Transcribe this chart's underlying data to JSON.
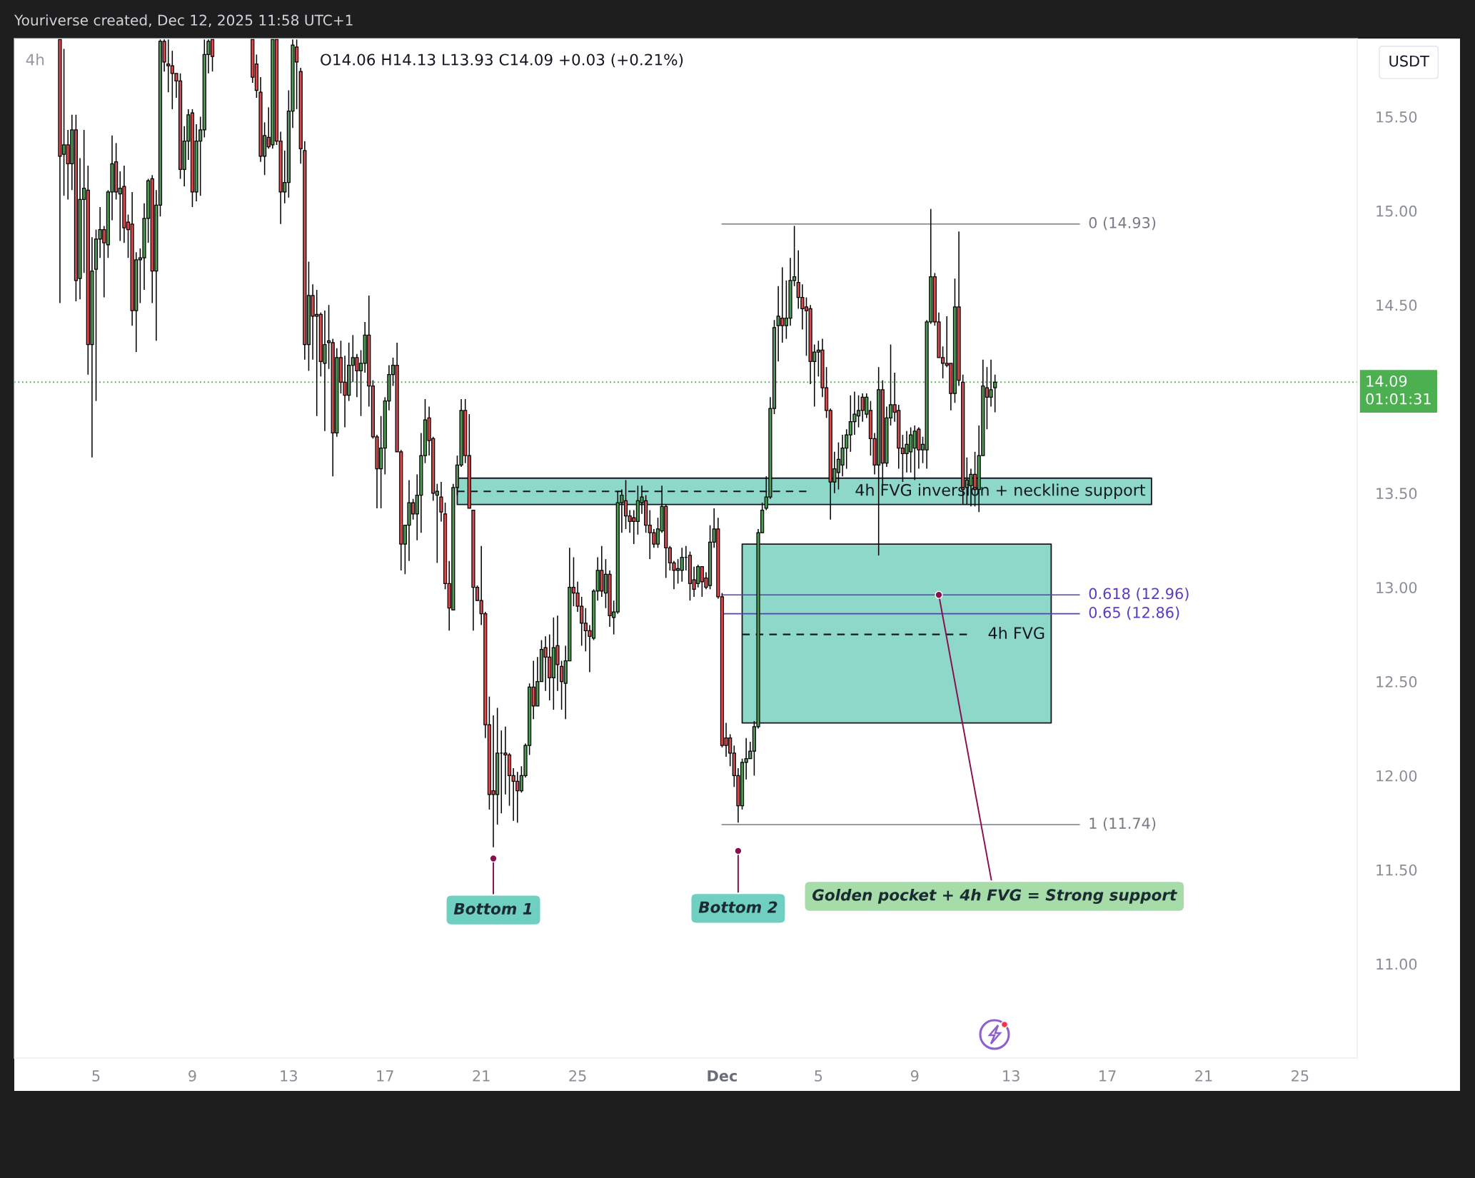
{
  "chart_data": {
    "type": "candlestick",
    "title": "Youriverse created, Dec 12, 2025 11:58 UTC+1",
    "ylabel": "USDT",
    "x": [
      "2025-11-03T12:00",
      "2025-11-03T16:00",
      "2025-11-03T20:00",
      "2025-11-04T00:00",
      "2025-11-04T04:00",
      "2025-11-04T08:00",
      "2025-11-04T12:00",
      "2025-11-04T16:00",
      "2025-11-04T20:00",
      "2025-11-05T00:00",
      "2025-11-05T04:00",
      "2025-11-05T08:00",
      "2025-11-05T12:00",
      "2025-11-05T16:00",
      "2025-11-05T20:00",
      "2025-11-06T00:00",
      "2025-11-06T04:00",
      "2025-11-06T08:00",
      "2025-11-06T12:00",
      "2025-11-06T16:00",
      "2025-11-06T20:00",
      "2025-11-07T00:00",
      "2025-11-07T04:00",
      "2025-11-07T08:00",
      "2025-11-07T12:00",
      "2025-11-07T16:00",
      "2025-11-07T20:00",
      "2025-11-08T00:00",
      "2025-11-08T04:00",
      "2025-11-08T08:00",
      "2025-11-08T12:00",
      "2025-11-08T16:00",
      "2025-11-08T20:00",
      "2025-11-09T00:00",
      "2025-11-09T04:00",
      "2025-11-09T08:00",
      "2025-11-09T12:00",
      "2025-11-09T16:00",
      "2025-11-09T20:00",
      "2025-11-11T12:00",
      "2025-11-11T16:00",
      "2025-11-11T20:00",
      "2025-11-12T00:00",
      "2025-11-12T04:00",
      "2025-11-12T08:00",
      "2025-11-12T12:00",
      "2025-11-12T16:00",
      "2025-11-12T20:00",
      "2025-11-13T00:00",
      "2025-11-13T04:00",
      "2025-11-13T08:00",
      "2025-11-13T12:00",
      "2025-11-13T16:00",
      "2025-11-13T20:00",
      "2025-11-14T00:00",
      "2025-11-14T04:00",
      "2025-11-14T08:00",
      "2025-11-14T12:00",
      "2025-11-14T16:00",
      "2025-11-14T20:00",
      "2025-11-15T00:00",
      "2025-11-15T04:00",
      "2025-11-15T08:00",
      "2025-11-15T12:00",
      "2025-11-15T16:00",
      "2025-11-15T20:00",
      "2025-11-16T00:00",
      "2025-11-16T04:00",
      "2025-11-16T08:00",
      "2025-11-16T12:00",
      "2025-11-16T16:00",
      "2025-11-16T20:00",
      "2025-11-17T00:00",
      "2025-11-17T04:00",
      "2025-11-17T08:00",
      "2025-11-17T12:00",
      "2025-11-17T16:00",
      "2025-11-17T20:00",
      "2025-11-18T00:00",
      "2025-11-18T04:00",
      "2025-11-18T08:00",
      "2025-11-18T12:00",
      "2025-11-18T16:00",
      "2025-11-18T20:00",
      "2025-11-19T00:00",
      "2025-11-19T04:00",
      "2025-11-19T08:00",
      "2025-11-19T12:00",
      "2025-11-19T16:00",
      "2025-11-19T20:00",
      "2025-11-20T00:00",
      "2025-11-20T04:00",
      "2025-11-20T08:00",
      "2025-11-20T12:00",
      "2025-11-20T16:00",
      "2025-11-20T20:00",
      "2025-11-21T00:00",
      "2025-11-21T04:00",
      "2025-11-21T08:00",
      "2025-11-21T12:00",
      "2025-11-21T16:00",
      "2025-11-21T20:00",
      "2025-11-22T00:00",
      "2025-11-22T04:00",
      "2025-11-22T08:00",
      "2025-11-22T12:00",
      "2025-11-22T16:00",
      "2025-11-22T20:00",
      "2025-11-23T00:00",
      "2025-11-23T04:00",
      "2025-11-23T08:00",
      "2025-11-23T12:00",
      "2025-11-23T16:00",
      "2025-11-23T20:00",
      "2025-11-24T00:00",
      "2025-11-24T04:00",
      "2025-11-24T08:00",
      "2025-11-24T12:00",
      "2025-11-24T16:00",
      "2025-11-24T20:00",
      "2025-11-25T00:00",
      "2025-11-25T04:00",
      "2025-11-25T08:00",
      "2025-11-25T12:00",
      "2025-11-25T16:00",
      "2025-11-25T20:00",
      "2025-11-26T00:00",
      "2025-11-26T04:00",
      "2025-11-26T08:00",
      "2025-11-26T12:00",
      "2025-11-26T16:00",
      "2025-11-26T20:00",
      "2025-11-27T00:00",
      "2025-11-27T04:00",
      "2025-11-27T08:00",
      "2025-11-27T12:00",
      "2025-11-27T16:00",
      "2025-11-27T20:00",
      "2025-11-28T00:00",
      "2025-11-28T04:00",
      "2025-11-28T08:00",
      "2025-11-28T12:00",
      "2025-11-28T16:00",
      "2025-11-28T20:00",
      "2025-11-29T00:00",
      "2025-11-29T04:00",
      "2025-11-29T08:00",
      "2025-11-29T12:00",
      "2025-11-29T16:00",
      "2025-11-29T20:00",
      "2025-11-30T00:00",
      "2025-11-30T04:00",
      "2025-11-30T08:00",
      "2025-11-30T12:00",
      "2025-11-30T16:00",
      "2025-11-30T20:00",
      "2025-12-01T00:00",
      "2025-12-01T04:00",
      "2025-12-01T08:00",
      "2025-12-01T12:00",
      "2025-12-01T16:00",
      "2025-12-01T20:00",
      "2025-12-02T00:00",
      "2025-12-02T04:00",
      "2025-12-02T08:00",
      "2025-12-02T12:00",
      "2025-12-02T16:00",
      "2025-12-02T20:00",
      "2025-12-03T00:00",
      "2025-12-03T04:00",
      "2025-12-03T08:00",
      "2025-12-03T12:00",
      "2025-12-03T16:00",
      "2025-12-03T20:00",
      "2025-12-04T00:00",
      "2025-12-04T04:00",
      "2025-12-04T08:00",
      "2025-12-04T12:00",
      "2025-12-04T16:00",
      "2025-12-04T20:00",
      "2025-12-05T00:00",
      "2025-12-05T04:00",
      "2025-12-05T08:00",
      "2025-12-05T12:00",
      "2025-12-05T16:00",
      "2025-12-05T20:00",
      "2025-12-06T00:00",
      "2025-12-06T04:00",
      "2025-12-06T08:00",
      "2025-12-06T12:00",
      "2025-12-06T16:00",
      "2025-12-06T20:00",
      "2025-12-07T00:00",
      "2025-12-07T04:00",
      "2025-12-07T08:00",
      "2025-12-07T12:00",
      "2025-12-07T16:00",
      "2025-12-07T20:00",
      "2025-12-08T00:00",
      "2025-12-08T04:00",
      "2025-12-08T08:00",
      "2025-12-08T12:00",
      "2025-12-08T16:00",
      "2025-12-08T20:00",
      "2025-12-09T00:00",
      "2025-12-09T04:00",
      "2025-12-09T08:00",
      "2025-12-09T12:00",
      "2025-12-09T16:00",
      "2025-12-09T20:00",
      "2025-12-10T00:00",
      "2025-12-10T04:00",
      "2025-12-10T08:00",
      "2025-12-10T12:00",
      "2025-12-10T16:00",
      "2025-12-10T20:00",
      "2025-12-11T00:00",
      "2025-12-11T04:00",
      "2025-12-11T08:00",
      "2025-12-11T12:00",
      "2025-12-11T16:00",
      "2025-12-11T20:00",
      "2025-12-12T00:00",
      "2025-12-12T04:00",
      "2025-12-12T08:00"
    ],
    "ohlc": [
      [
        15.91,
        15.91,
        14.51,
        15.29
      ],
      [
        15.3,
        15.86,
        15.08,
        15.35
      ],
      [
        15.35,
        15.43,
        15.06,
        15.25
      ],
      [
        15.25,
        15.51,
        15.11,
        15.43
      ],
      [
        15.43,
        15.51,
        14.52,
        14.63
      ],
      [
        14.64,
        15.28,
        14.53,
        15.06
      ],
      [
        15.06,
        15.43,
        14.67,
        15.12
      ],
      [
        15.11,
        15.24,
        14.13,
        14.29
      ],
      [
        14.29,
        14.86,
        13.69,
        14.68
      ],
      [
        14.69,
        14.9,
        13.99,
        14.85
      ],
      [
        14.85,
        15.02,
        14.75,
        14.9
      ],
      [
        14.9,
        14.92,
        14.54,
        14.83
      ],
      [
        14.82,
        15.11,
        14.75,
        15.1
      ],
      [
        15.1,
        15.4,
        14.95,
        15.25
      ],
      [
        15.26,
        15.36,
        15.06,
        15.1
      ],
      [
        15.09,
        15.21,
        14.84,
        15.12
      ],
      [
        15.13,
        15.24,
        14.83,
        14.91
      ],
      [
        14.94,
        14.98,
        14.75,
        14.9
      ],
      [
        14.93,
        15.1,
        14.39,
        14.47
      ],
      [
        14.47,
        14.78,
        14.25,
        14.74
      ],
      [
        14.74,
        14.8,
        14.51,
        14.75
      ],
      [
        14.75,
        15.04,
        14.58,
        14.96
      ],
      [
        14.96,
        15.17,
        14.83,
        15.16
      ],
      [
        15.17,
        15.19,
        14.51,
        14.68
      ],
      [
        14.68,
        15.11,
        14.31,
        15.03
      ],
      [
        15.03,
        15.91,
        14.97,
        15.9
      ],
      [
        15.9,
        15.91,
        15.74,
        15.79
      ],
      [
        15.78,
        15.91,
        15.63,
        15.77
      ],
      [
        15.77,
        15.85,
        15.54,
        15.73
      ],
      [
        15.73,
        15.73,
        15.6,
        15.69
      ],
      [
        15.69,
        15.73,
        15.17,
        15.22
      ],
      [
        15.22,
        15.45,
        15.13,
        15.37
      ],
      [
        15.37,
        15.54,
        15.27,
        15.51
      ],
      [
        15.52,
        15.54,
        15.02,
        15.1
      ],
      [
        15.1,
        15.46,
        15.05,
        15.37
      ],
      [
        15.37,
        15.5,
        15.08,
        15.43
      ],
      [
        15.43,
        15.91,
        15.39,
        15.83
      ],
      [
        15.83,
        15.91,
        15.73,
        15.9
      ],
      [
        15.91,
        15.91,
        15.74,
        15.82
      ],
      [
        15.91,
        15.91,
        15.68,
        15.71
      ],
      [
        15.78,
        15.83,
        15.6,
        15.64
      ],
      [
        15.63,
        15.71,
        15.26,
        15.29
      ],
      [
        15.29,
        15.47,
        15.19,
        15.4
      ],
      [
        15.39,
        15.55,
        15.33,
        15.34
      ],
      [
        15.35,
        15.91,
        15.33,
        15.91
      ],
      [
        15.91,
        15.91,
        15.35,
        15.37
      ],
      [
        15.37,
        15.42,
        14.93,
        15.1
      ],
      [
        15.1,
        15.32,
        15.04,
        15.15
      ],
      [
        15.15,
        15.64,
        15.07,
        15.53
      ],
      [
        15.53,
        15.91,
        15.44,
        15.88
      ],
      [
        15.87,
        15.91,
        15.54,
        15.79
      ],
      [
        15.74,
        15.76,
        15.25,
        15.33
      ],
      [
        15.32,
        15.37,
        14.21,
        14.29
      ],
      [
        14.29,
        14.73,
        14.15,
        14.55
      ],
      [
        14.55,
        14.61,
        14.21,
        14.44
      ],
      [
        14.45,
        14.58,
        13.91,
        14.44
      ],
      [
        14.45,
        14.46,
        14.12,
        14.2
      ],
      [
        14.19,
        14.47,
        13.83,
        14.29
      ],
      [
        14.3,
        14.5,
        14.16,
        14.31
      ],
      [
        14.3,
        14.32,
        13.59,
        13.82
      ],
      [
        13.82,
        14.27,
        13.8,
        14.22
      ],
      [
        14.22,
        14.31,
        14.03,
        14.09
      ],
      [
        14.09,
        14.23,
        13.85,
        14.02
      ],
      [
        14.02,
        14.3,
        13.99,
        14.18
      ],
      [
        14.18,
        14.34,
        14.09,
        14.22
      ],
      [
        14.22,
        14.24,
        14.01,
        14.15
      ],
      [
        14.15,
        14.26,
        13.91,
        14.19
      ],
      [
        14.19,
        14.41,
        14.14,
        14.34
      ],
      [
        14.34,
        14.55,
        13.96,
        14.07
      ],
      [
        14.07,
        14.1,
        13.79,
        13.8
      ],
      [
        13.8,
        13.81,
        13.42,
        13.63
      ],
      [
        13.63,
        13.91,
        13.42,
        13.74
      ],
      [
        13.74,
        14.01,
        13.6,
        13.99
      ],
      [
        13.99,
        14.18,
        13.94,
        14.13
      ],
      [
        14.13,
        14.22,
        14.07,
        14.18
      ],
      [
        14.18,
        14.3,
        13.72,
        13.72
      ],
      [
        13.72,
        13.73,
        13.09,
        13.23
      ],
      [
        13.23,
        13.33,
        13.07,
        13.33
      ],
      [
        13.33,
        13.57,
        13.14,
        13.45
      ],
      [
        13.45,
        13.47,
        13.36,
        13.39
      ],
      [
        13.39,
        13.6,
        13.25,
        13.49
      ],
      [
        13.49,
        13.82,
        13.29,
        13.7
      ],
      [
        13.7,
        14.0,
        13.66,
        13.89
      ],
      [
        13.9,
        13.96,
        13.7,
        13.78
      ],
      [
        13.79,
        13.8,
        13.46,
        13.5
      ],
      [
        13.49,
        13.55,
        13.13,
        13.51
      ],
      [
        13.48,
        13.56,
        13.35,
        13.4
      ],
      [
        13.39,
        13.45,
        12.99,
        13.02
      ],
      [
        13.02,
        13.14,
        12.77,
        12.89
      ],
      [
        12.88,
        13.55,
        12.88,
        13.53
      ],
      [
        13.53,
        13.7,
        13.49,
        13.65
      ],
      [
        13.65,
        14.0,
        13.64,
        13.94
      ],
      [
        13.94,
        14.0,
        13.66,
        13.7
      ],
      [
        13.7,
        13.92,
        13.42,
        13.42
      ],
      [
        13.41,
        13.41,
        12.77,
        13.0
      ],
      [
        13.0,
        13.01,
        12.93,
        12.93
      ],
      [
        12.93,
        13.22,
        12.8,
        12.86
      ],
      [
        12.86,
        12.87,
        12.2,
        12.27
      ],
      [
        12.27,
        12.42,
        11.82,
        11.9
      ],
      [
        11.92,
        12.32,
        11.62,
        11.9
      ],
      [
        11.9,
        12.36,
        11.74,
        12.12
      ],
      [
        12.12,
        12.24,
        11.8,
        12.12
      ],
      [
        12.12,
        12.26,
        11.9,
        12.11
      ],
      [
        12.11,
        12.12,
        11.84,
        12.0
      ],
      [
        12.0,
        12.04,
        11.76,
        11.97
      ],
      [
        11.97,
        12.02,
        11.75,
        11.92
      ],
      [
        11.92,
        12.05,
        11.91,
        12.0
      ],
      [
        12.0,
        12.17,
        11.99,
        12.16
      ],
      [
        12.16,
        12.49,
        12.11,
        12.47
      ],
      [
        12.47,
        12.61,
        12.3,
        12.37
      ],
      [
        12.37,
        12.63,
        12.37,
        12.5
      ],
      [
        12.5,
        12.72,
        12.5,
        12.67
      ],
      [
        12.68,
        12.74,
        12.45,
        12.63
      ],
      [
        12.63,
        12.75,
        12.4,
        12.52
      ],
      [
        12.52,
        12.84,
        12.35,
        12.68
      ],
      [
        12.69,
        12.85,
        12.45,
        12.59
      ],
      [
        12.58,
        12.61,
        12.35,
        12.5
      ],
      [
        12.49,
        12.69,
        12.3,
        12.61
      ],
      [
        12.61,
        13.21,
        12.61,
        13.0
      ],
      [
        13.0,
        13.16,
        12.9,
        12.97
      ],
      [
        12.97,
        13.03,
        12.87,
        12.9
      ],
      [
        12.9,
        12.95,
        12.69,
        12.81
      ],
      [
        12.81,
        12.89,
        12.66,
        12.77
      ],
      [
        12.77,
        12.8,
        12.55,
        12.74
      ],
      [
        12.73,
        12.99,
        12.72,
        12.98
      ],
      [
        12.98,
        13.16,
        12.93,
        13.09
      ],
      [
        13.09,
        13.22,
        12.95,
        12.98
      ],
      [
        12.97,
        13.15,
        12.89,
        13.07
      ],
      [
        13.07,
        13.09,
        12.79,
        12.85
      ],
      [
        12.84,
        12.93,
        12.75,
        12.87
      ],
      [
        12.87,
        13.51,
        12.86,
        13.45
      ],
      [
        13.45,
        13.52,
        13.29,
        13.49
      ],
      [
        13.46,
        13.57,
        13.31,
        13.38
      ],
      [
        13.38,
        13.41,
        13.29,
        13.35
      ],
      [
        13.37,
        13.41,
        13.23,
        13.35
      ],
      [
        13.35,
        13.54,
        13.28,
        13.46
      ],
      [
        13.45,
        13.54,
        13.39,
        13.48
      ],
      [
        13.46,
        13.49,
        13.29,
        13.33
      ],
      [
        13.33,
        13.41,
        13.15,
        13.29
      ],
      [
        13.29,
        13.31,
        13.21,
        13.23
      ],
      [
        13.23,
        13.37,
        13.21,
        13.31
      ],
      [
        13.3,
        13.54,
        13.29,
        13.43
      ],
      [
        13.43,
        13.44,
        13.05,
        13.21
      ],
      [
        13.21,
        13.22,
        13.09,
        13.13
      ],
      [
        13.13,
        13.14,
        12.99,
        13.09
      ],
      [
        13.09,
        13.15,
        13.02,
        13.1
      ],
      [
        13.09,
        13.21,
        13.03,
        13.16
      ],
      [
        13.16,
        13.22,
        13.09,
        13.16
      ],
      [
        13.17,
        13.19,
        12.93,
        13.02
      ],
      [
        13.04,
        13.11,
        12.95,
        12.99
      ],
      [
        13.02,
        13.12,
        13.0,
        13.11
      ],
      [
        13.11,
        13.11,
        12.95,
        13.03
      ],
      [
        13.05,
        13.08,
        12.99,
        13.0
      ],
      [
        13.01,
        13.33,
        12.99,
        13.24
      ],
      [
        13.24,
        13.42,
        13.21,
        13.31
      ],
      [
        13.31,
        13.37,
        12.94,
        12.95
      ],
      [
        12.95,
        12.97,
        12.15,
        12.16
      ],
      [
        12.2,
        12.28,
        12.1,
        12.16
      ],
      [
        12.2,
        12.22,
        12.05,
        12.12
      ],
      [
        12.12,
        12.16,
        11.94,
        12.0
      ],
      [
        12.0,
        12.04,
        11.75,
        11.84
      ],
      [
        11.84,
        12.09,
        11.82,
        12.07
      ],
      [
        12.07,
        12.2,
        11.98,
        12.09
      ],
      [
        12.09,
        12.18,
        12.09,
        12.13
      ],
      [
        12.13,
        12.29,
        12.0,
        12.26
      ],
      [
        12.26,
        13.31,
        12.25,
        13.29
      ],
      [
        13.29,
        13.45,
        13.29,
        13.41
      ],
      [
        13.42,
        13.59,
        13.41,
        13.48
      ],
      [
        13.48,
        14.01,
        13.47,
        13.95
      ],
      [
        13.95,
        14.42,
        13.92,
        14.38
      ],
      [
        14.39,
        14.6,
        14.2,
        14.44
      ],
      [
        14.43,
        14.7,
        14.3,
        14.39
      ],
      [
        14.39,
        14.63,
        14.32,
        14.43
      ],
      [
        14.43,
        14.75,
        14.39,
        14.63
      ],
      [
        14.63,
        14.92,
        14.6,
        14.65
      ],
      [
        14.62,
        14.79,
        14.48,
        14.54
      ],
      [
        14.54,
        14.61,
        14.37,
        14.48
      ],
      [
        14.49,
        14.54,
        14.23,
        14.47
      ],
      [
        14.48,
        14.5,
        14.08,
        14.2
      ],
      [
        14.2,
        14.29,
        13.96,
        14.25
      ],
      [
        14.25,
        14.31,
        14.12,
        14.26
      ],
      [
        14.26,
        14.32,
        14.01,
        14.06
      ],
      [
        14.06,
        14.17,
        13.9,
        13.94
      ],
      [
        13.94,
        13.95,
        13.36,
        13.56
      ],
      [
        13.56,
        13.72,
        13.5,
        13.63
      ],
      [
        13.61,
        13.77,
        13.52,
        13.68
      ],
      [
        13.65,
        13.81,
        13.59,
        13.74
      ],
      [
        13.74,
        13.84,
        13.63,
        13.81
      ],
      [
        13.81,
        14.02,
        13.72,
        13.88
      ],
      [
        13.88,
        14.04,
        13.81,
        13.92
      ],
      [
        13.91,
        14.02,
        13.85,
        13.94
      ],
      [
        14.01,
        14.03,
        13.88,
        13.94
      ],
      [
        13.92,
        14.03,
        13.9,
        14.01
      ],
      [
        13.94,
        13.99,
        13.7,
        13.79
      ],
      [
        13.79,
        13.82,
        13.6,
        13.65
      ],
      [
        13.65,
        14.17,
        13.17,
        14.05
      ],
      [
        14.05,
        14.1,
        13.54,
        13.66
      ],
      [
        13.66,
        13.96,
        13.64,
        13.9
      ],
      [
        13.9,
        14.29,
        13.86,
        13.97
      ],
      [
        13.97,
        14.14,
        13.88,
        13.93
      ],
      [
        13.94,
        13.97,
        13.63,
        13.74
      ],
      [
        13.74,
        13.81,
        13.56,
        13.71
      ],
      [
        13.71,
        13.83,
        13.61,
        13.76
      ],
      [
        13.72,
        13.85,
        13.61,
        13.81
      ],
      [
        13.74,
        13.86,
        13.57,
        13.83
      ],
      [
        13.84,
        13.85,
        13.63,
        13.73
      ],
      [
        13.73,
        13.8,
        13.66,
        13.76
      ],
      [
        13.73,
        14.42,
        13.63,
        14.41
      ],
      [
        14.41,
        15.01,
        14.4,
        14.65
      ],
      [
        14.65,
        14.67,
        14.39,
        14.41
      ],
      [
        14.41,
        14.46,
        14.22,
        14.22
      ],
      [
        14.22,
        14.28,
        14.11,
        14.19
      ],
      [
        14.19,
        14.44,
        14.17,
        14.18
      ],
      [
        14.19,
        14.19,
        13.94,
        14.03
      ],
      [
        14.03,
        14.64,
        13.98,
        14.49
      ],
      [
        14.49,
        14.89,
        14.07,
        14.1
      ],
      [
        14.09,
        14.13,
        13.44,
        13.52
      ],
      [
        13.53,
        13.69,
        13.44,
        13.57
      ],
      [
        13.54,
        13.63,
        13.43,
        13.6
      ],
      [
        13.6,
        13.72,
        13.43,
        13.52
      ],
      [
        13.52,
        13.86,
        13.4,
        13.7
      ],
      [
        13.7,
        14.21,
        13.7,
        14.07
      ],
      [
        14.06,
        14.17,
        13.84,
        14.01
      ],
      [
        14.01,
        14.21,
        13.96,
        14.05
      ],
      [
        14.06,
        14.13,
        13.93,
        14.09
      ]
    ],
    "series": [
      {
        "type": "line",
        "name": "4h FVG inversion + neckline support",
        "color": "#131722",
        "line_style": "dashed",
        "x": [
          "2025-11-20T00:00",
          "2025-12-04T12:00",
          "2025-12-18T20:00"
        ],
        "values": [
          13.51,
          13.51,
          null
        ],
        "lower": [
          13.44,
          13.44,
          13.44
        ],
        "upper": [
          13.58,
          13.58,
          13.58
        ]
      },
      {
        "type": "line",
        "name": "4h FVG",
        "color": "#131722",
        "line_style": "dashed",
        "x": [
          "2025-12-01T20:00",
          "2025-12-11T04:00",
          "2025-12-14T16:00"
        ],
        "values": [
          12.75,
          12.75,
          null
        ],
        "lower": [
          12.28,
          12.28,
          12.28
        ],
        "upper": [
          13.23,
          13.23,
          13.23
        ]
      },
      {
        "type": "line",
        "name": "0 (14.93)",
        "color": "#787b86",
        "line_style": "solid",
        "x": [
          "2025-12-01T00:00",
          "2025-12-15T20:00"
        ],
        "values": [
          14.93,
          14.93
        ]
      },
      {
        "type": "line",
        "name": "0.618 (12.96)",
        "color": "#5b3bbf",
        "line_style": "solid",
        "x": [
          "2025-12-01T00:00",
          "2025-12-15T20:00"
        ],
        "values": [
          12.96,
          12.96
        ]
      },
      {
        "type": "line",
        "name": "0.65 (12.86)",
        "color": "#5b3bbf",
        "line_style": "solid",
        "x": [
          "2025-12-01T00:00",
          "2025-12-15T20:00"
        ],
        "values": [
          12.86,
          12.86
        ]
      },
      {
        "type": "line",
        "name": "1 (11.74)",
        "color": "#787b86",
        "line_style": "solid",
        "x": [
          "2025-12-01T00:00",
          "2025-12-15T20:00"
        ],
        "values": [
          11.74,
          11.74
        ]
      }
    ],
    "ref_lines": [
      {
        "axis": "y",
        "value": 14.09,
        "label": "14.09\n01:01:31",
        "color": "#4caf50",
        "line_style": "dotted"
      }
    ],
    "annotations": [
      "4h",
      "O14.06 H14.13 L13.93 C14.09 +0.03 (+0.21%)",
      {
        "text": "Bottom 1",
        "x": "2025-11-21T12:00",
        "y": 11.56
      },
      {
        "text": "Bottom 2",
        "x": "2025-12-01T16:00",
        "y": 11.6
      },
      {
        "text": "Golden pocket + 4h FVG = Strong support",
        "x": "2025-12-10T00:00",
        "y": 12.96
      }
    ],
    "xlim": [
      "2025-11-01T14:30",
      "2025-12-27T09:00"
    ],
    "ylim": [
      10.5,
      15.915
    ],
    "xticks": [
      {
        "value": "2025-11-05",
        "label": "5"
      },
      {
        "value": "2025-11-09",
        "label": "9"
      },
      {
        "value": "2025-11-13",
        "label": "13"
      },
      {
        "value": "2025-11-17",
        "label": "17"
      },
      {
        "value": "2025-11-21",
        "label": "21"
      },
      {
        "value": "2025-11-25",
        "label": "25"
      },
      {
        "value": "2025-12-01",
        "label": "Dec"
      },
      {
        "value": "2025-12-05",
        "label": "5"
      },
      {
        "value": "2025-12-09",
        "label": "9"
      },
      {
        "value": "2025-12-13",
        "label": "13"
      },
      {
        "value": "2025-12-17",
        "label": "17"
      },
      {
        "value": "2025-12-21",
        "label": "21"
      },
      {
        "value": "2025-12-25",
        "label": "25"
      }
    ],
    "yticks": [
      {
        "value": 11,
        "label": "11.00"
      },
      {
        "value": 11.5,
        "label": "11.50"
      },
      {
        "value": 12,
        "label": "12.00"
      },
      {
        "value": 12.5,
        "label": "12.50"
      },
      {
        "value": 13,
        "label": "13.00"
      },
      {
        "value": 13.5,
        "label": "13.50"
      },
      {
        "value": 14.5,
        "label": "14.50"
      },
      {
        "value": 15,
        "label": "15.00"
      },
      {
        "value": 15.5,
        "label": "15.50"
      }
    ]
  }
}
